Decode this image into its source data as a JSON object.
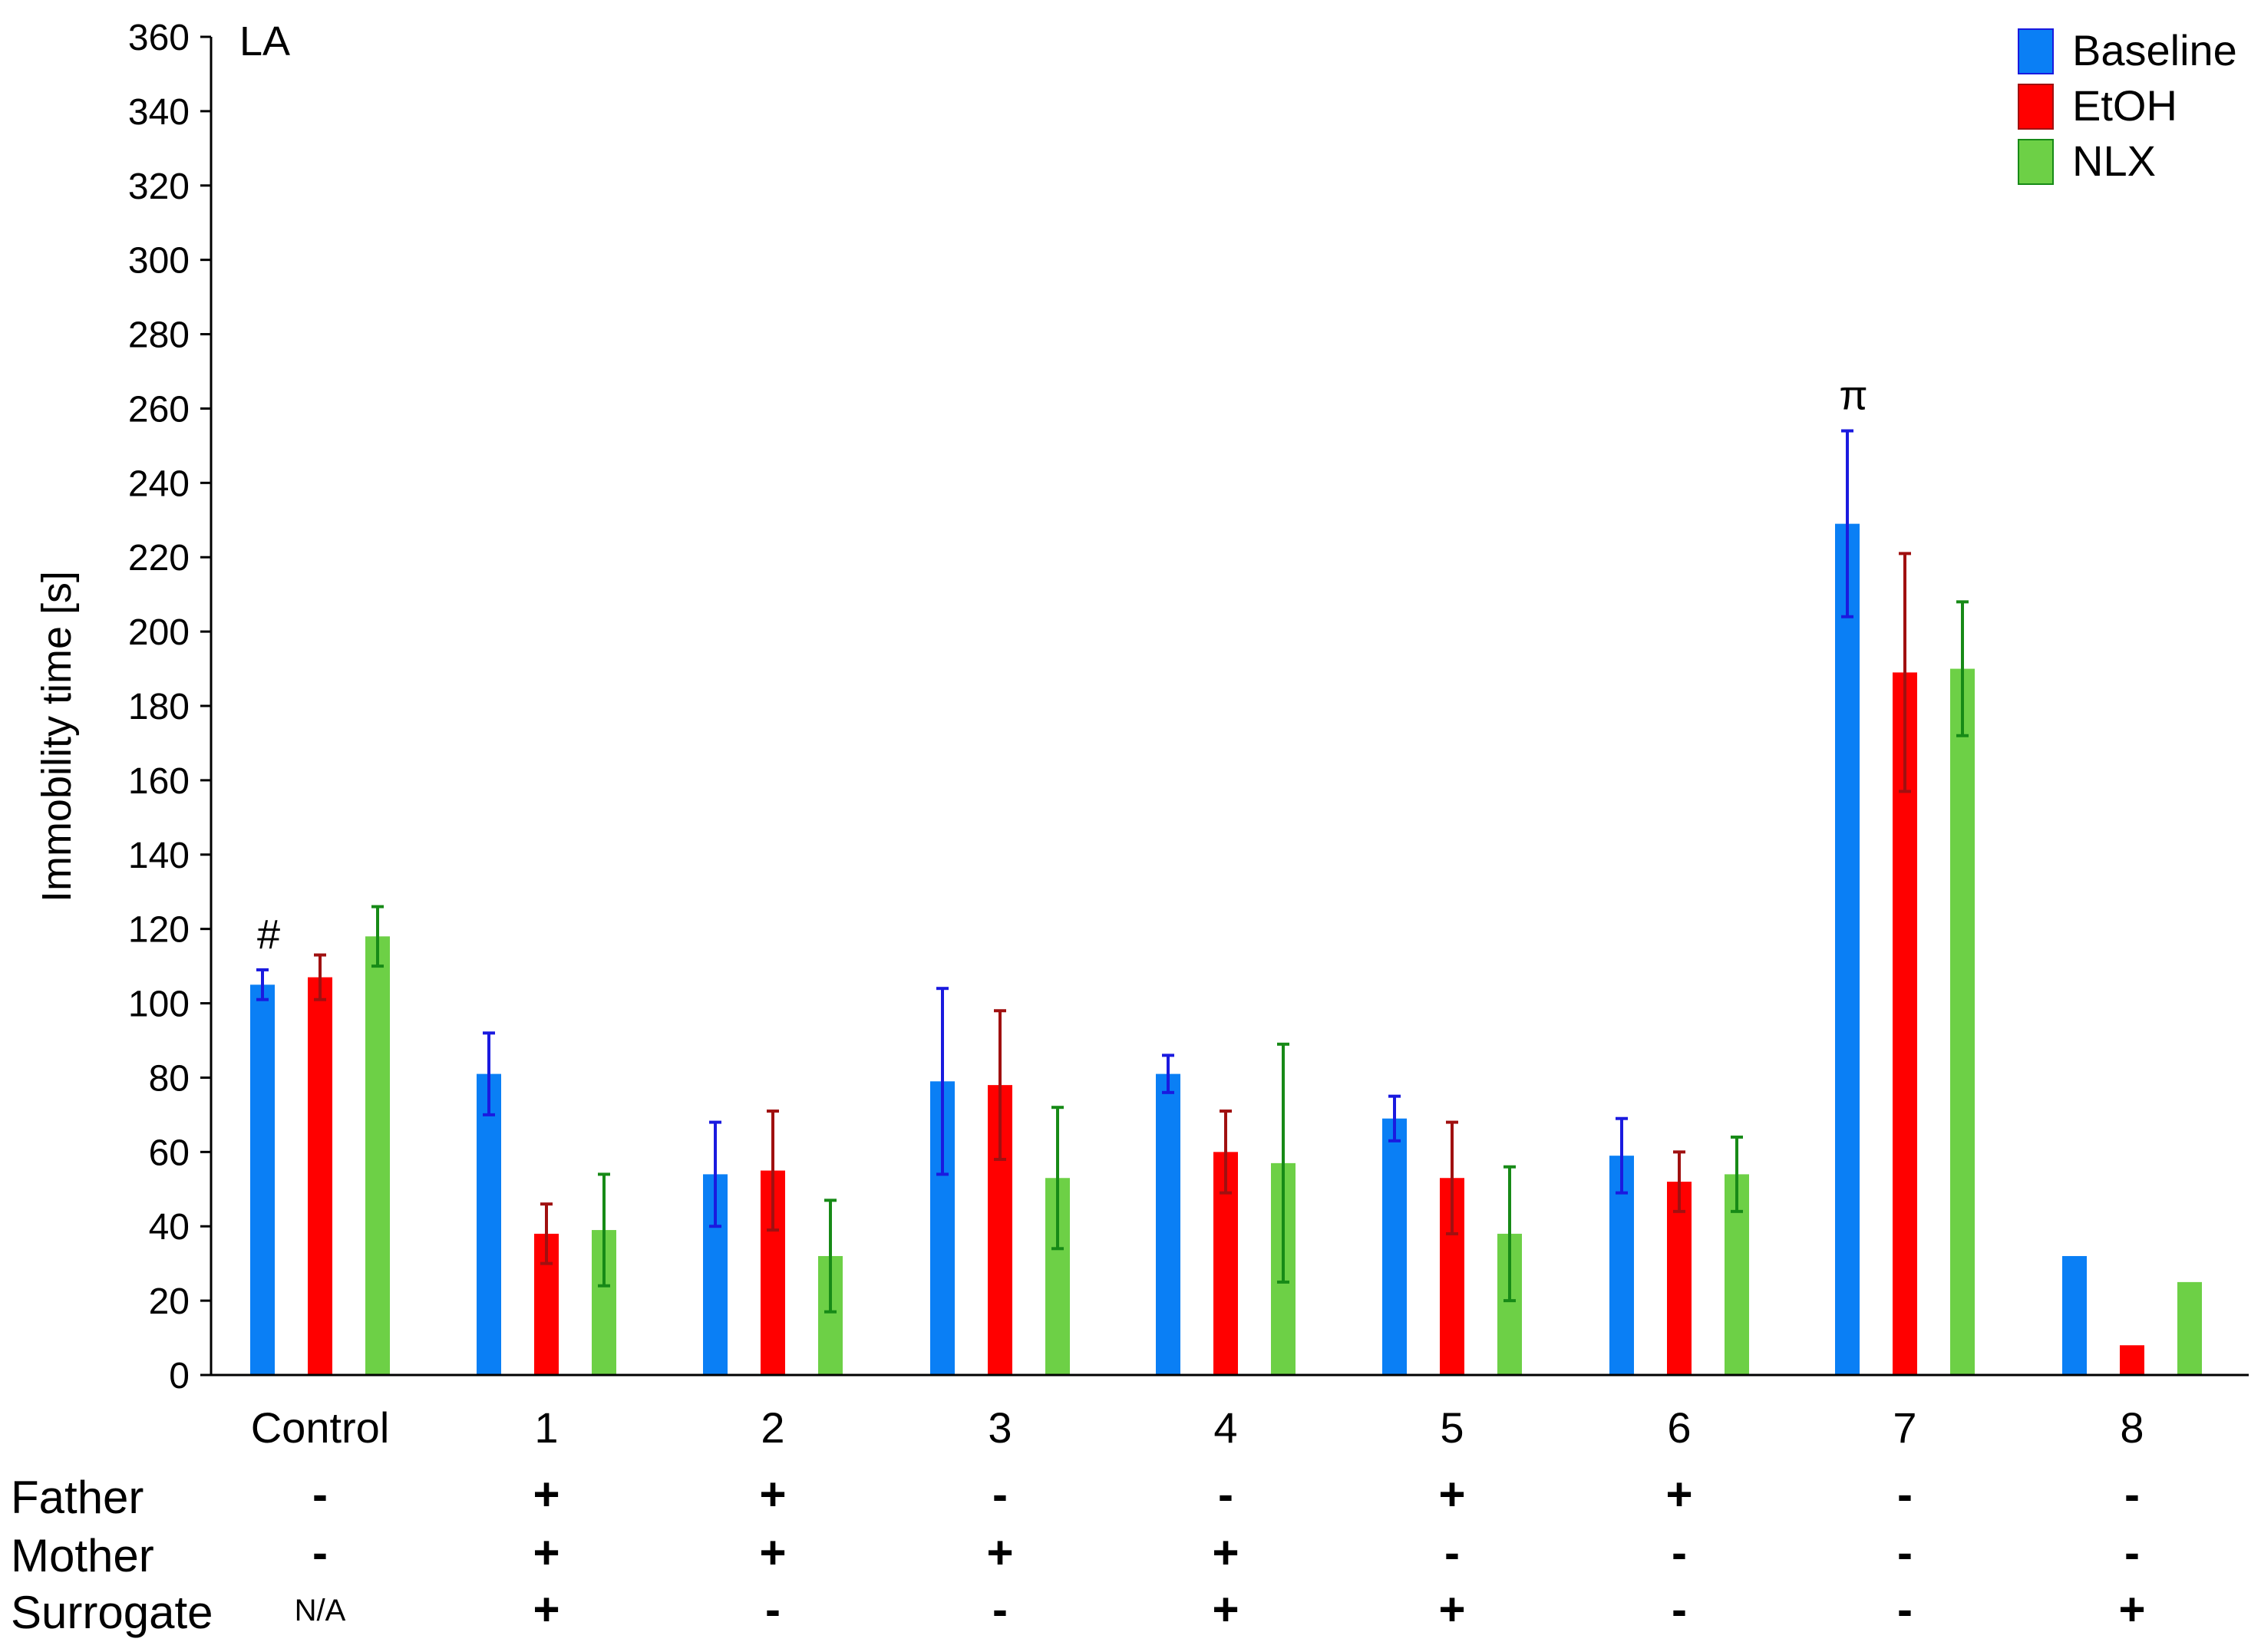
{
  "chart_data": {
    "type": "bar",
    "panel_label": "LA",
    "ylabel": "Immobility time [s]",
    "ylim": [
      0,
      360
    ],
    "ytick_step": 20,
    "categories": [
      "Control",
      "1",
      "2",
      "3",
      "4",
      "5",
      "6",
      "7",
      "8"
    ],
    "series": [
      {
        "name": "Baseline",
        "color": "#0a7ff5",
        "err_color": "#1a1adf",
        "values": [
          105,
          81,
          54,
          79,
          81,
          69,
          59,
          229,
          32
        ],
        "errors": [
          4,
          11,
          14,
          25,
          5,
          6,
          10,
          25,
          null
        ]
      },
      {
        "name": "EtOH",
        "color": "#ff0000",
        "err_color": "#a01010",
        "values": [
          107,
          38,
          55,
          78,
          60,
          53,
          52,
          189,
          8
        ],
        "errors": [
          6,
          8,
          16,
          20,
          11,
          15,
          8,
          32,
          null
        ]
      },
      {
        "name": "NLX",
        "color": "#6dd046",
        "err_color": "#178a17",
        "values": [
          118,
          39,
          32,
          53,
          57,
          38,
          54,
          190,
          25
        ],
        "errors": [
          8,
          15,
          15,
          19,
          32,
          18,
          10,
          18,
          null
        ]
      }
    ],
    "annotations": [
      {
        "category": "Control",
        "series": "Baseline",
        "text": "#"
      },
      {
        "category": "7",
        "series": "Baseline",
        "text": "π"
      }
    ],
    "legend": "top-right",
    "grid": false
  },
  "factor_table": {
    "rows": [
      {
        "label": "Father",
        "values": [
          "-",
          "+",
          "+",
          "-",
          "-",
          "+",
          "+",
          "-",
          "-"
        ]
      },
      {
        "label": "Mother",
        "values": [
          "-",
          "+",
          "+",
          "+",
          "+",
          "-",
          "-",
          "-",
          "-"
        ]
      },
      {
        "label": "Surrogate",
        "values": [
          "N/A",
          "+",
          "-",
          "-",
          "+",
          "+",
          "-",
          "-",
          "+"
        ]
      }
    ]
  }
}
